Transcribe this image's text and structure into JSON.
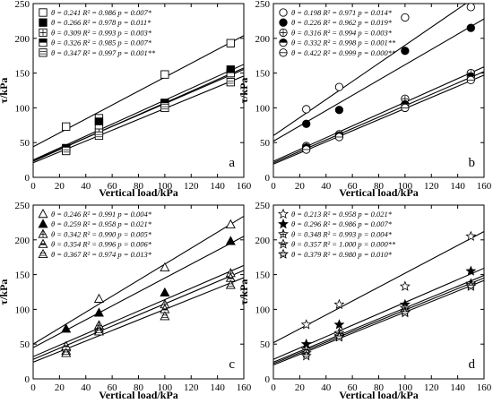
{
  "chart_data": [
    {
      "type": "scatter",
      "panel_label": "a",
      "xlabel": "Vertical load/kPa",
      "ylabel": "τ/kPa",
      "xlim": [
        0,
        160
      ],
      "ylim": [
        0,
        250
      ],
      "xticks": [
        "0",
        "20",
        "40",
        "60",
        "80",
        "100",
        "120",
        "140",
        "160"
      ],
      "yticks": [
        "0",
        "50",
        "100",
        "150",
        "200",
        "250"
      ],
      "legend_position": "top-left",
      "series": [
        {
          "marker": "square-open",
          "legend": "θ = 0.241  R² = 0.986  p = 0.007*",
          "x": [
            25,
            50,
            100,
            150
          ],
          "y": [
            73,
            85,
            148,
            193
          ],
          "fit": {
            "intercept": 44,
            "slope": 1.0
          }
        },
        {
          "marker": "square-filled",
          "legend": "θ = 0.266  R² = 0.978  p = 0.011*",
          "x": [
            25,
            50,
            100,
            150
          ],
          "y": [
            42,
            80,
            107,
            155
          ],
          "fit": {
            "intercept": 25,
            "slope": 0.86
          }
        },
        {
          "marker": "square-cross",
          "legend": "θ = 0.309  R² = 0.993  p = 0.003*",
          "x": [
            25,
            50,
            100,
            150
          ],
          "y": [
            40,
            65,
            105,
            150
          ],
          "fit": {
            "intercept": 23,
            "slope": 0.84
          }
        },
        {
          "marker": "square-half",
          "legend": "θ = 0.326  R² = 0.985  p = 0.007*",
          "x": [
            25,
            50,
            100,
            150
          ],
          "y": [
            40,
            75,
            107,
            150
          ],
          "fit": {
            "intercept": 24,
            "slope": 0.82
          }
        },
        {
          "marker": "square-lines",
          "legend": "θ = 0.347  R² = 0.997  p = 0.001**",
          "x": [
            25,
            50,
            100,
            150
          ],
          "y": [
            38,
            60,
            100,
            137
          ],
          "fit": {
            "intercept": 21,
            "slope": 0.78
          }
        }
      ]
    },
    {
      "type": "scatter",
      "panel_label": "b",
      "xlabel": "Vertical load/kPa",
      "ylabel": "τ/kPa",
      "xlim": [
        0,
        160
      ],
      "ylim": [
        0,
        250
      ],
      "xticks": [
        "0",
        "20",
        "40",
        "60",
        "80",
        "100",
        "120",
        "140",
        "160"
      ],
      "yticks": [
        "0",
        "50",
        "100",
        "150",
        "200",
        "250"
      ],
      "legend_position": "top-left",
      "series": [
        {
          "marker": "circle-open",
          "legend": "θ = 0.198  R² = 0.971  p = 0.014*",
          "x": [
            25,
            50,
            100,
            150
          ],
          "y": [
            98,
            130,
            230,
            245
          ],
          "fit": {
            "intercept": 60,
            "slope": 1.3
          }
        },
        {
          "marker": "circle-filled",
          "legend": "θ = 0.226  R² = 0.962  p = 0.019*",
          "x": [
            25,
            50,
            100,
            150
          ],
          "y": [
            77,
            97,
            182,
            215
          ],
          "fit": {
            "intercept": 52,
            "slope": 1.1
          }
        },
        {
          "marker": "circle-cross",
          "legend": "θ = 0.316  R² = 0.994  p = 0.003*",
          "x": [
            25,
            50,
            100,
            150
          ],
          "y": [
            45,
            62,
            113,
            150
          ],
          "fit": {
            "intercept": 23,
            "slope": 0.85
          }
        },
        {
          "marker": "circle-half",
          "legend": "θ = 0.332  R² = 0.998  p = 0.001**",
          "x": [
            25,
            50,
            100,
            150
          ],
          "y": [
            43,
            60,
            105,
            145
          ],
          "fit": {
            "intercept": 21,
            "slope": 0.82
          }
        },
        {
          "marker": "circle-line",
          "legend": "θ = 0.422  R² = 0.999  p = 0.000**",
          "x": [
            25,
            50,
            100,
            150
          ],
          "y": [
            40,
            58,
            100,
            140
          ],
          "fit": {
            "intercept": 19,
            "slope": 0.8
          }
        }
      ]
    },
    {
      "type": "scatter",
      "panel_label": "c",
      "xlabel": "Vertical load/kPa",
      "ylabel": "τ/kPa",
      "xlim": [
        0,
        160
      ],
      "ylim": [
        0,
        250
      ],
      "xticks": [
        "0",
        "20",
        "40",
        "60",
        "80",
        "100",
        "120",
        "140",
        "160"
      ],
      "yticks": [
        "0",
        "50",
        "100",
        "150",
        "200",
        "250"
      ],
      "legend_position": "top-left",
      "series": [
        {
          "marker": "triangle-open",
          "legend": "θ = 0.246  R² = 0.991  p = 0.004*",
          "x": [
            25,
            50,
            100,
            150
          ],
          "y": [
            40,
            115,
            160,
            222
          ],
          "fit": {
            "intercept": 50,
            "slope": 1.15
          }
        },
        {
          "marker": "triangle-filled",
          "legend": "θ = 0.259  R² = 0.958  p = 0.021*",
          "x": [
            25,
            50,
            100,
            150
          ],
          "y": [
            72,
            95,
            124,
            198
          ],
          "fit": {
            "intercept": 45,
            "slope": 1.0
          }
        },
        {
          "marker": "triangle-cross",
          "legend": "θ = 0.342  R² = 0.990  p = 0.005*",
          "x": [
            25,
            50,
            100,
            150
          ],
          "y": [
            45,
            77,
            107,
            152
          ],
          "fit": {
            "intercept": 32,
            "slope": 0.82
          }
        },
        {
          "marker": "triangle-half",
          "legend": "θ = 0.354  R² = 0.996  p = 0.006*",
          "x": [
            25,
            50,
            100,
            150
          ],
          "y": [
            47,
            72,
            100,
            145
          ],
          "fit": {
            "intercept": 28,
            "slope": 0.8
          }
        },
        {
          "marker": "triangle-lines",
          "legend": "θ = 0.367  R² = 0.974  p = 0.013*",
          "x": [
            25,
            50,
            100,
            150
          ],
          "y": [
            37,
            68,
            90,
            135
          ],
          "fit": {
            "intercept": 24,
            "slope": 0.76
          }
        }
      ]
    },
    {
      "type": "scatter",
      "panel_label": "d",
      "xlabel": "Vertical load/kPa",
      "ylabel": "τ/kPa",
      "xlim": [
        0,
        160
      ],
      "ylim": [
        0,
        250
      ],
      "xticks": [
        "0",
        "20",
        "40",
        "60",
        "80",
        "100",
        "120",
        "140",
        "160"
      ],
      "yticks": [
        "0",
        "50",
        "100",
        "150",
        "200",
        "250"
      ],
      "legend_position": "top-left",
      "series": [
        {
          "marker": "star-open",
          "legend": "θ = 0.213  R² = 0.958  p = 0.021*",
          "x": [
            25,
            50,
            100,
            150
          ],
          "y": [
            78,
            107,
            133,
            205
          ],
          "fit": {
            "intercept": 52,
            "slope": 1.0
          }
        },
        {
          "marker": "star-filled",
          "legend": "θ = 0.296  R² = 0.986  p = 0.007*",
          "x": [
            25,
            50,
            100,
            150
          ],
          "y": [
            50,
            78,
            107,
            155
          ],
          "fit": {
            "intercept": 28,
            "slope": 0.82
          }
        },
        {
          "marker": "star-cross",
          "legend": "θ = 0.348  R² = 0.993  p = 0.004*",
          "x": [
            25,
            50,
            100,
            150
          ],
          "y": [
            37,
            66,
            102,
            137
          ],
          "fit": {
            "intercept": 24,
            "slope": 0.78
          }
        },
        {
          "marker": "star-half",
          "legend": "θ = 0.357  R² = 1.000  p = 0.000**",
          "x": [
            25,
            50,
            100,
            150
          ],
          "y": [
            42,
            62,
            97,
            135
          ],
          "fit": {
            "intercept": 22,
            "slope": 0.77
          }
        },
        {
          "marker": "star-lines",
          "legend": "θ = 0.379  R² = 0.980  p = 0.010*",
          "x": [
            25,
            50,
            100,
            150
          ],
          "y": [
            33,
            60,
            95,
            133
          ],
          "fit": {
            "intercept": 20,
            "slope": 0.76
          }
        }
      ]
    }
  ]
}
